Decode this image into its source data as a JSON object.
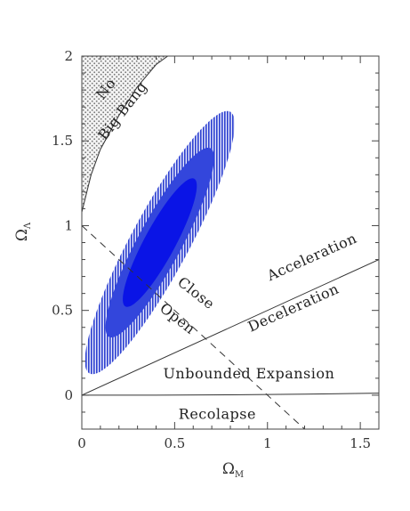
{
  "chart_data": {
    "type": "line",
    "title": "",
    "xlabel": "Ω",
    "xlabel_sub": "M",
    "ylabel": "Ω",
    "ylabel_sub": "Λ",
    "xlim": [
      0,
      1.6
    ],
    "ylim": [
      -0.2,
      2
    ],
    "x_ticks": [
      "0",
      "0.5",
      "1",
      "1.5"
    ],
    "x_tick_values": [
      0,
      0.5,
      1,
      1.5
    ],
    "y_ticks": [
      "0",
      "0.5",
      "1",
      "1.5",
      "2"
    ],
    "y_tick_values": [
      0,
      0.5,
      1,
      1.5,
      2
    ],
    "confidence_regions": {
      "center": [
        0.42,
        0.9
      ],
      "angle_deg": 64,
      "levels": [
        {
          "name": "3-sigma",
          "semi_axes": [
            0.86,
            0.16
          ],
          "fill": "hatched",
          "color": "#2b3fd0"
        },
        {
          "name": "2-sigma",
          "semi_axes": [
            0.62,
            0.12
          ],
          "fill": "solid",
          "color": "#3346dc"
        },
        {
          "name": "1-sigma",
          "semi_axes": [
            0.42,
            0.085
          ],
          "fill": "solid",
          "color": "#0a14e6"
        }
      ]
    },
    "lines": [
      {
        "name": "no-big-bang-boundary",
        "style": "solid",
        "points": [
          [
            0,
            1.08
          ],
          [
            0.05,
            1.3
          ],
          [
            0.1,
            1.45
          ],
          [
            0.2,
            1.65
          ],
          [
            0.3,
            1.82
          ],
          [
            0.4,
            1.95
          ],
          [
            0.5,
            2.03
          ]
        ]
      },
      {
        "name": "flat-universe",
        "style": "dashed",
        "points": [
          [
            0,
            1
          ],
          [
            1.2,
            -0.2
          ]
        ]
      },
      {
        "name": "acceleration-boundary",
        "style": "solid",
        "points": [
          [
            0,
            0
          ],
          [
            1.6,
            0.8
          ]
        ]
      },
      {
        "name": "recollapse-boundary",
        "style": "solid",
        "points": [
          [
            0,
            0
          ],
          [
            0.4,
            0
          ],
          [
            0.8,
            0.002
          ],
          [
            1.2,
            0.006
          ],
          [
            1.6,
            0.012
          ]
        ]
      }
    ],
    "shaded_region": {
      "name": "no-big-bang-region",
      "fill": "dotted"
    },
    "annotations": [
      {
        "text": "No",
        "x": 0.15,
        "y": 1.79,
        "angle_deg": -52
      },
      {
        "text": "Big Bang",
        "x": 0.24,
        "y": 1.66,
        "angle_deg": -52
      },
      {
        "text": "Close",
        "x": 0.6,
        "y": 0.58,
        "angle_deg": 38
      },
      {
        "text": "Open",
        "x": 0.5,
        "y": 0.43,
        "angle_deg": 38
      },
      {
        "text": "Acceleration",
        "x": 1.25,
        "y": 0.79,
        "angle_deg": -24
      },
      {
        "text": "Deceleration",
        "x": 1.15,
        "y": 0.49,
        "angle_deg": -24
      },
      {
        "text": "Unbounded Expansion",
        "x": 0.9,
        "y": 0.1,
        "angle_deg": 0
      },
      {
        "text": "Recolapse",
        "x": 0.73,
        "y": -0.14,
        "angle_deg": 0
      }
    ]
  }
}
